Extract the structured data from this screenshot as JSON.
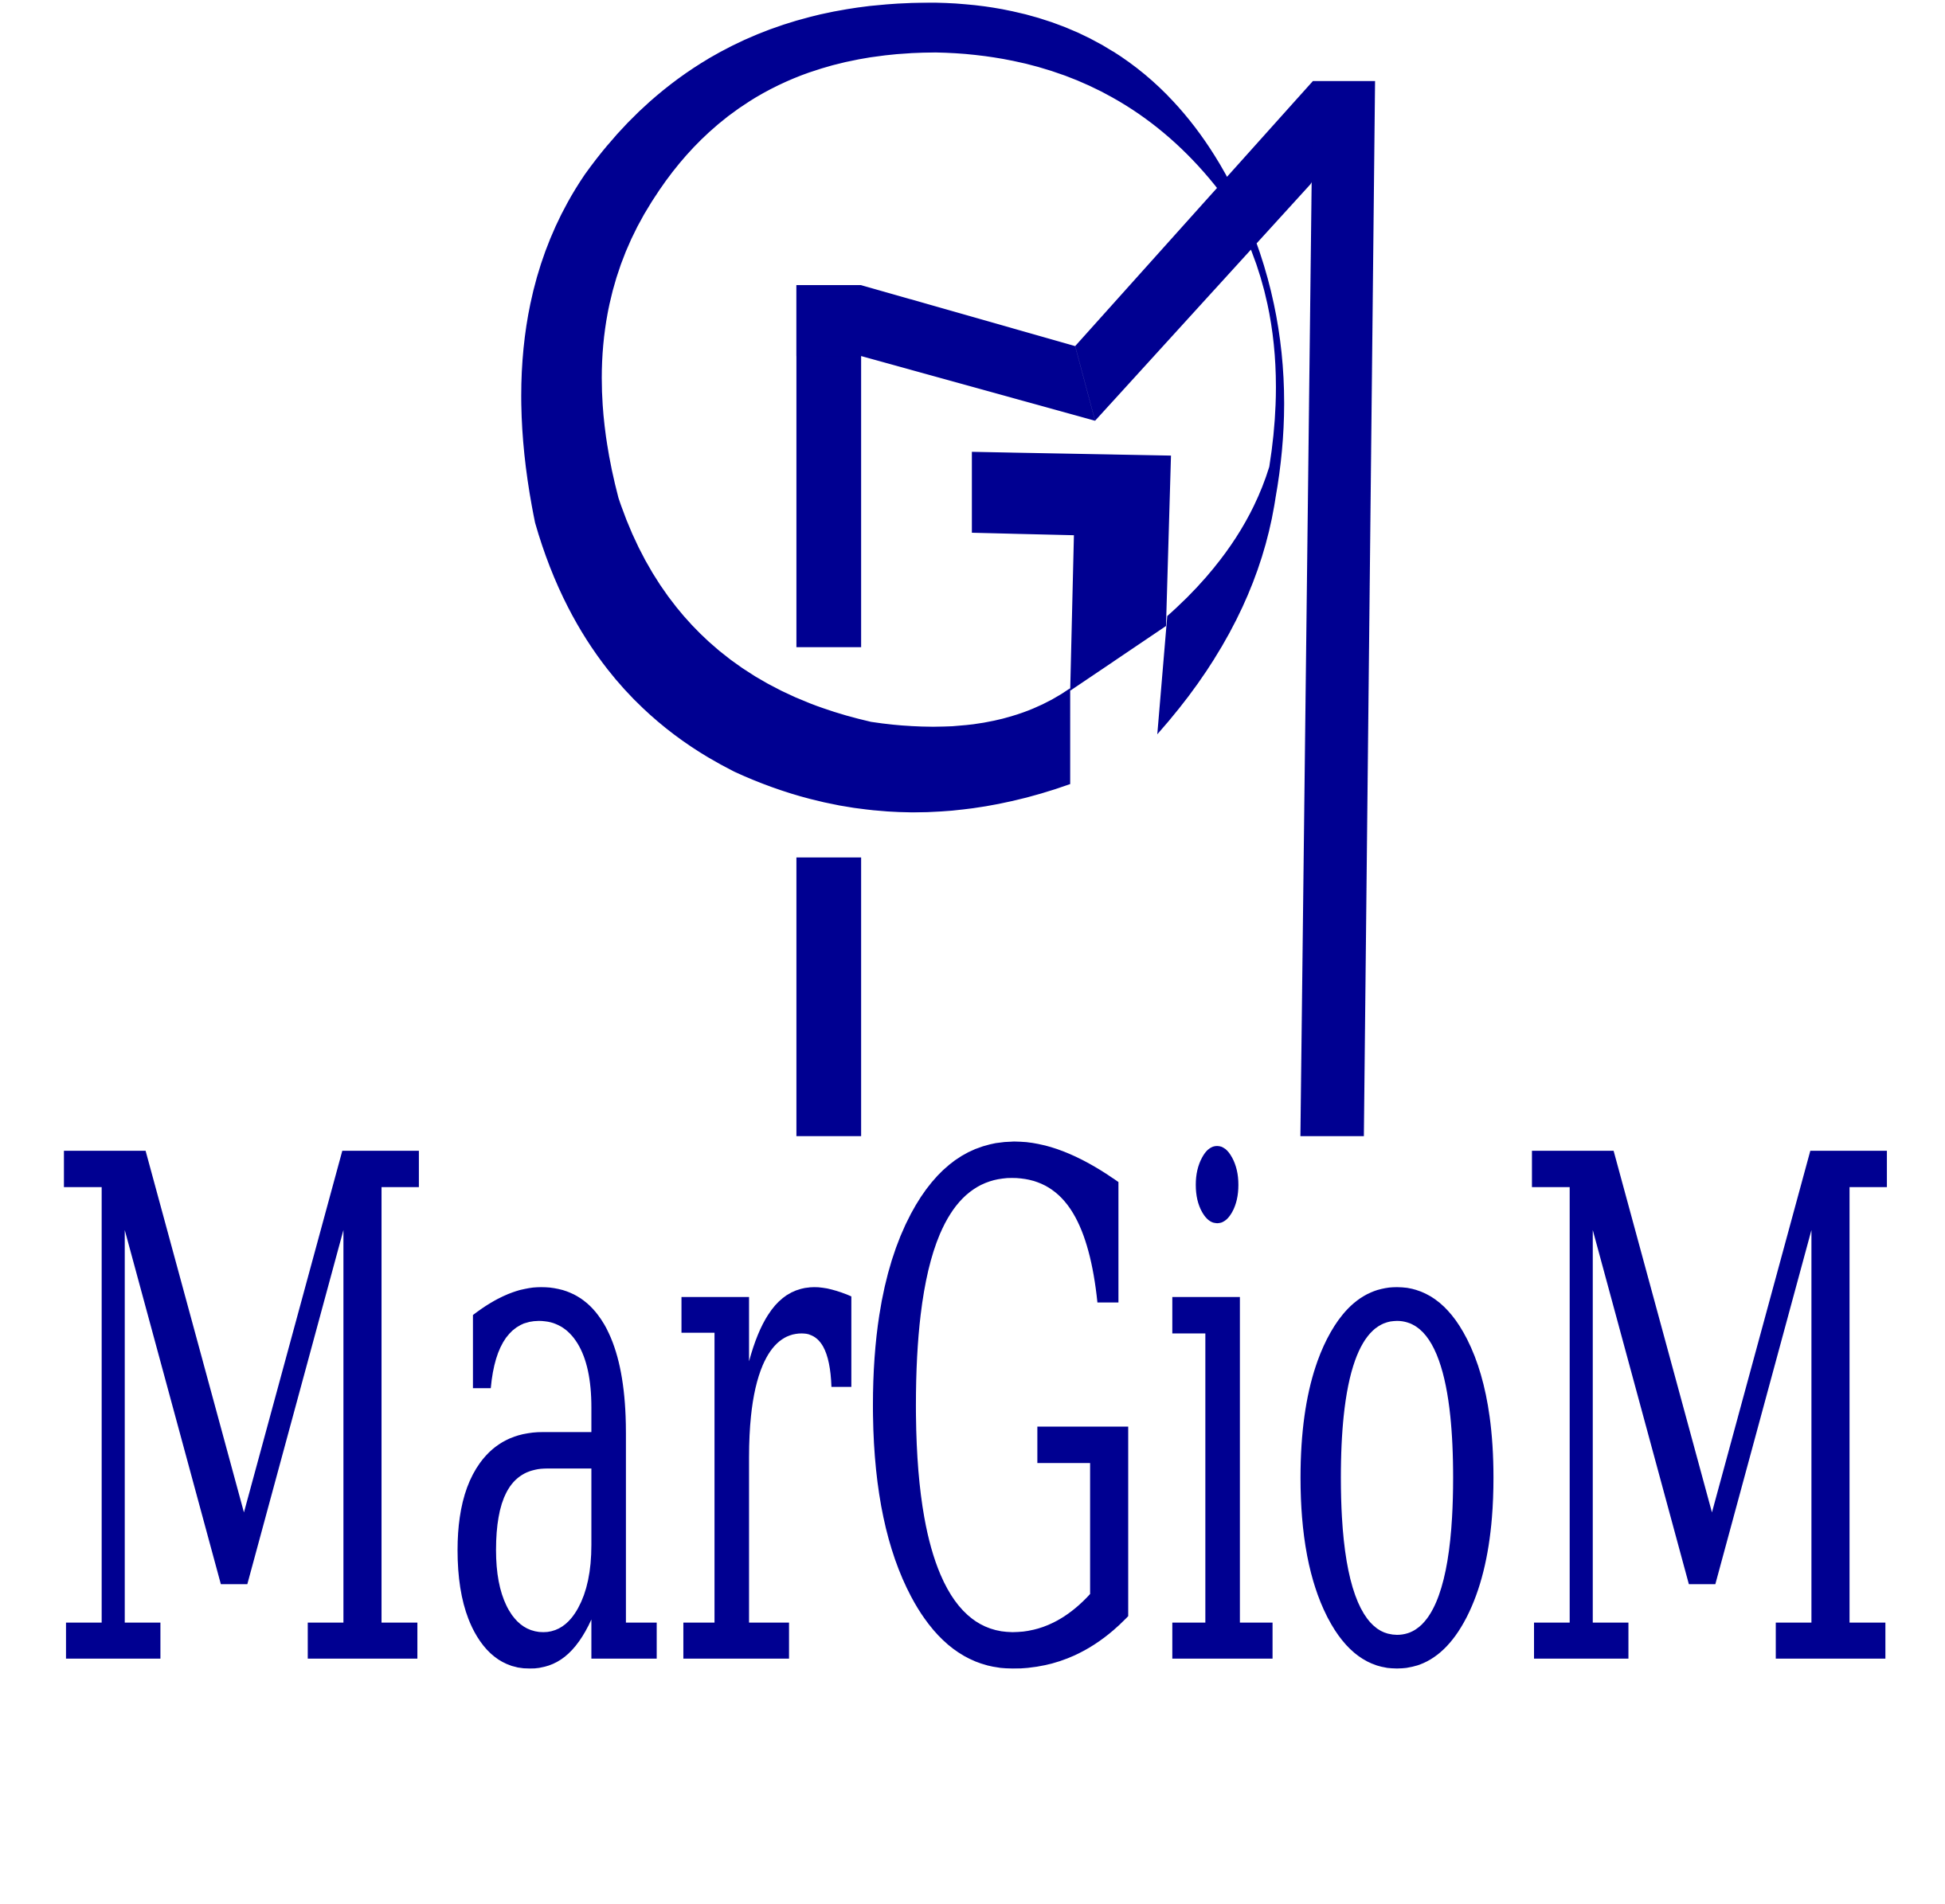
{
  "logo": {
    "wordmark": "MarGioM",
    "emblem": "gm-monogram-emblem",
    "colors": {
      "brand": "#000091",
      "background": "#ffffff"
    }
  }
}
